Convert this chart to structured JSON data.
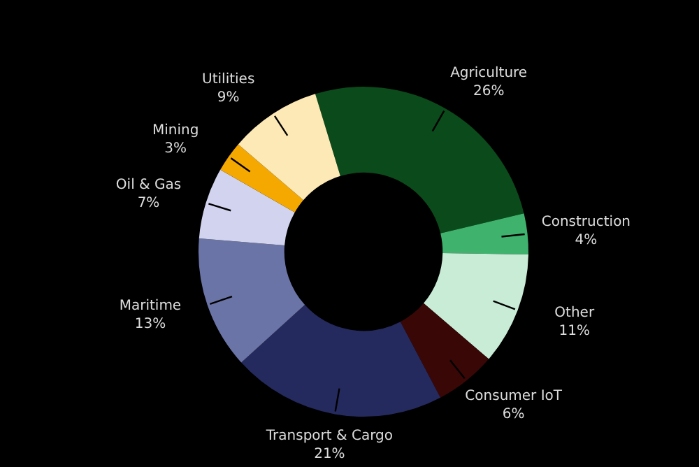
{
  "chart_data": {
    "type": "donut",
    "categories": [
      "Agriculture",
      "Construction",
      "Other",
      "Consumer IoT",
      "Transport & Cargo",
      "Maritime",
      "Oil & Gas",
      "Mining",
      "Utilities"
    ],
    "values": [
      26,
      4,
      11,
      6,
      21,
      13,
      7,
      3,
      9
    ],
    "value_labels": [
      "26%",
      "4%",
      "11%",
      "6%",
      "21%",
      "13%",
      "7%",
      "3%",
      "9%"
    ],
    "colors": [
      "#0b4a1a",
      "#3fb26e",
      "#c8ecd6",
      "#3a0707",
      "#252a5e",
      "#6b74a6",
      "#d2d4ef",
      "#f5a800",
      "#fde9b5"
    ],
    "legend": false
  }
}
